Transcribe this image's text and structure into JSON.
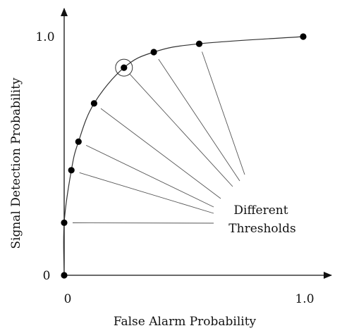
{
  "labels": {
    "x_axis": "False Alarm Probability",
    "y_axis": "Signal Detection Probability",
    "annotation_line1": "Different",
    "annotation_line2": "Thresholds"
  },
  "ticks": {
    "x_zero": "0",
    "x_one": "1.0",
    "y_zero": "0",
    "y_one": "1.0"
  },
  "chart_data": {
    "type": "line",
    "xlabel": "False Alarm Probability",
    "ylabel": "Signal Detection Probability",
    "xlim": [
      0,
      1.0
    ],
    "ylim": [
      0,
      1.0
    ],
    "x": [
      0.0,
      0.0,
      0.03,
      0.06,
      0.125,
      0.25,
      0.375,
      0.565,
      1.0
    ],
    "y": [
      0.0,
      0.22,
      0.44,
      0.56,
      0.72,
      0.87,
      0.935,
      0.97,
      1.0
    ],
    "highlighted_point_index": 5,
    "annotated_threshold_indices": [
      1,
      2,
      3,
      4,
      5,
      6,
      7
    ],
    "annotation": "Different Thresholds"
  }
}
